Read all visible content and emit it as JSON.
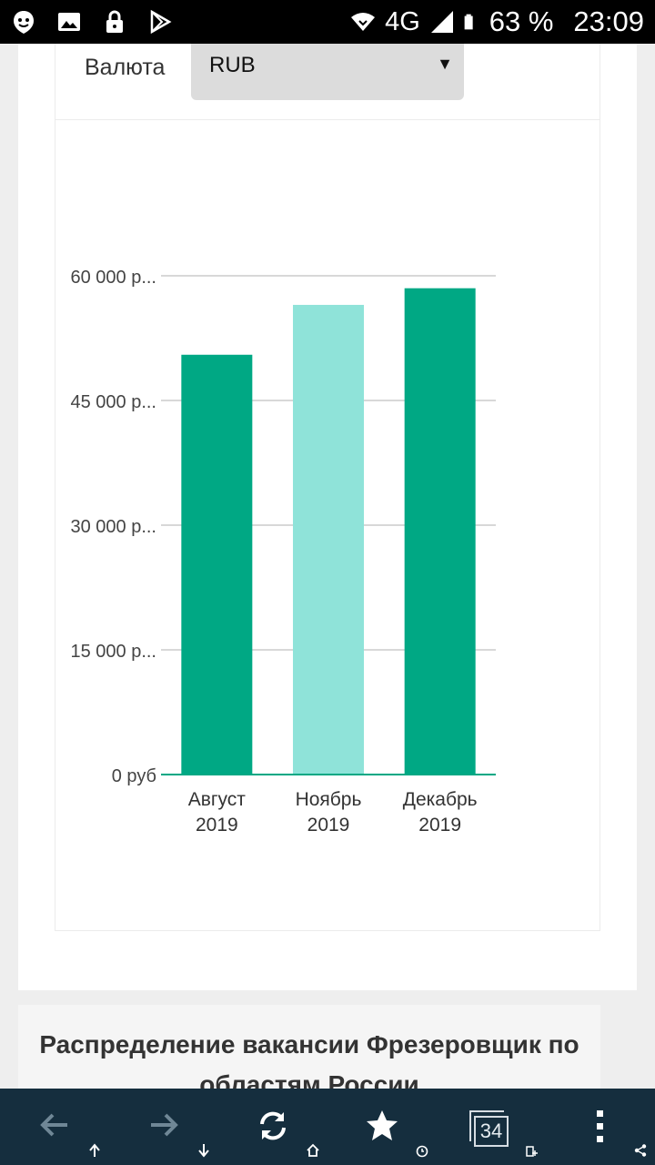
{
  "status_bar": {
    "network": "4G",
    "battery": "63 %",
    "time": "23:09",
    "icons": [
      "face-notification-icon",
      "image-icon",
      "lock-icon",
      "play-store-icon",
      "wifi-icon",
      "signal-icon",
      "battery-icon"
    ]
  },
  "filter": {
    "currency_label": "Валюта",
    "currency_value": "RUB"
  },
  "chart_data": {
    "type": "bar",
    "categories": [
      "Август 2019",
      "Ноябрь 2019",
      "Декабрь 2019"
    ],
    "category_lines": [
      [
        "Август",
        "2019"
      ],
      [
        "Ноябрь",
        "2019"
      ],
      [
        "Декабрь",
        "2019"
      ]
    ],
    "values": [
      50500,
      56500,
      58500
    ],
    "bar_colors": [
      "#00a884",
      "#8fe3d9",
      "#00a884"
    ],
    "y_ticks": [
      0,
      15000,
      30000,
      45000,
      60000
    ],
    "y_tick_labels": [
      "0 руб",
      "15 000 р...",
      "30 000 р...",
      "45 000 р...",
      "60 000 р..."
    ],
    "ylim": [
      0,
      60000
    ],
    "grid": true,
    "baseline_color": "#00a884"
  },
  "distribution": {
    "title": "Распределение вакансии Фрезеровщик по областям России"
  },
  "toolbar": {
    "tab_count": "34",
    "buttons": [
      "back-icon",
      "forward-icon",
      "refresh-icon",
      "bookmark-star-icon",
      "tabs-icon",
      "menu-icon"
    ]
  }
}
